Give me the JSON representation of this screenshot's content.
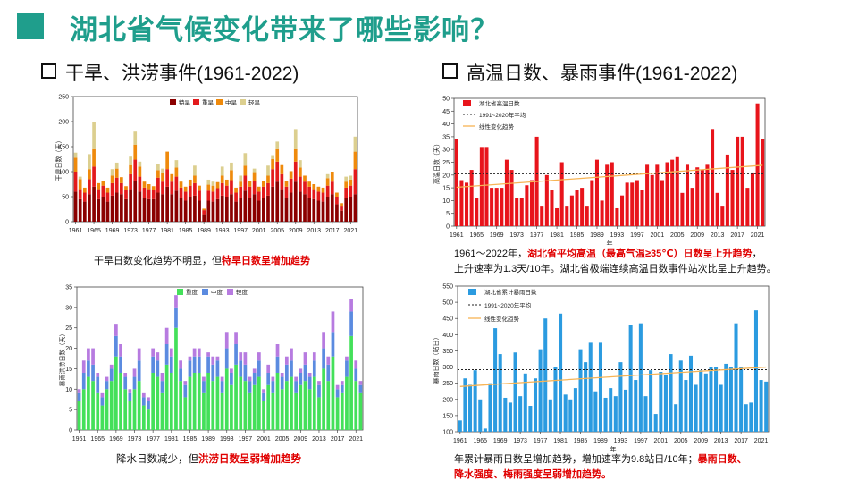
{
  "page": {
    "title": "湖北省气候变化带来了哪些影响？"
  },
  "sections": {
    "left": "干旱、洪涝事件(1961-2022)",
    "right": "高温日数、暴雨事件(1961-2022)"
  },
  "captions": {
    "c1_a": "干旱日数变化趋势不明显，但",
    "c1_b": "特旱日数呈增加趋势",
    "c2_a": "降水日数减少，但",
    "c2_b": "洪涝日数呈弱增加趋势",
    "c3_a": "1961～2022年，",
    "c3_b": "湖北省平均高温（最高气温≥35℃）日数呈上升趋势",
    "c3_c": "，",
    "c3_d": "上升速率为1.3天/10年。湖北省极端连续高温日数事件站次比呈上升趋势。",
    "c4_a": "年累计暴雨日数呈增加趋势，增加速率为9.8站日/10年；",
    "c4_b": "暴雨日数、",
    "c4_c": "降水强度、梅雨强度呈弱增加趋势。"
  },
  "colors": {
    "teal": "#1f9e8c",
    "drought": [
      "#8b0000",
      "#e31a1c",
      "#ef8a0c",
      "#dccf8f"
    ],
    "flood": [
      "#b77be0",
      "#5b8be0",
      "#44e05a"
    ],
    "heat": "#e8141b",
    "rain": "#2b9be0",
    "trend": "#f7b455",
    "mean": "#222222"
  },
  "chart_data": [
    {
      "id": "drought",
      "type": "bar",
      "stacked": true,
      "ylabel": "干旱日数（天）",
      "ylim": [
        0,
        250
      ],
      "yticks": [
        0,
        50,
        100,
        150,
        200,
        250
      ],
      "xticks": [
        "1961",
        "1965",
        "1969",
        "1973",
        "1977",
        "1981",
        "1985",
        "1989",
        "1993",
        "1997",
        "2001",
        "2005",
        "2009",
        "2013",
        "2017",
        "2021"
      ],
      "x_start": 1961,
      "legend": [
        "特旱",
        "重旱",
        "中旱",
        "轻旱"
      ],
      "series": [
        {
          "name": "轻旱",
          "values": [
            60,
            45,
            40,
            55,
            70,
            45,
            50,
            40,
            52,
            58,
            55,
            45,
            65,
            82,
            60,
            48,
            45,
            45,
            58,
            55,
            70,
            55,
            62,
            48,
            42,
            50,
            52,
            42,
            15,
            42,
            40,
            45,
            52,
            50,
            55,
            40,
            48,
            62,
            48,
            55,
            42,
            48,
            52,
            70,
            80,
            65,
            48,
            58,
            80,
            60,
            55,
            48,
            45,
            42,
            40,
            50,
            55,
            35,
            22,
            48,
            50,
            55
          ]
        },
        {
          "name": "中旱",
          "values": [
            40,
            20,
            18,
            30,
            40,
            20,
            22,
            18,
            25,
            30,
            22,
            18,
            30,
            42,
            30,
            20,
            20,
            18,
            30,
            25,
            35,
            25,
            28,
            20,
            18,
            22,
            25,
            20,
            8,
            20,
            20,
            22,
            25,
            22,
            28,
            18,
            22,
            30,
            22,
            26,
            18,
            22,
            25,
            35,
            40,
            30,
            22,
            28,
            40,
            30,
            25,
            22,
            20,
            18,
            18,
            22,
            25,
            15,
            10,
            20,
            22,
            50
          ]
        },
        {
          "name": "重旱",
          "values": [
            28,
            20,
            10,
            20,
            35,
            12,
            10,
            10,
            15,
            18,
            12,
            8,
            18,
            30,
            20,
            12,
            10,
            8,
            15,
            18,
            35,
            15,
            18,
            12,
            10,
            12,
            15,
            10,
            3,
            12,
            12,
            12,
            15,
            12,
            20,
            10,
            10,
            20,
            12,
            18,
            10,
            12,
            15,
            20,
            25,
            18,
            12,
            15,
            25,
            18,
            12,
            10,
            10,
            10,
            10,
            15,
            20,
            8,
            5,
            12,
            12,
            35
          ]
        },
        {
          "name": "特旱",
          "values": [
            10,
            5,
            0,
            30,
            55,
            0,
            0,
            0,
            13,
            12,
            0,
            0,
            17,
            26,
            10,
            0,
            0,
            0,
            12,
            8,
            0,
            0,
            15,
            0,
            0,
            0,
            20,
            0,
            0,
            10,
            8,
            0,
            18,
            0,
            15,
            0,
            12,
            25,
            0,
            7,
            0,
            0,
            20,
            8,
            15,
            0,
            0,
            0,
            40,
            15,
            0,
            0,
            0,
            0,
            0,
            8,
            0,
            0,
            0,
            10,
            8,
            30
          ]
        }
      ]
    },
    {
      "id": "flood",
      "type": "bar",
      "stacked": true,
      "ylabel": "暴雨洪涝日数（天）",
      "ylim": [
        0,
        35
      ],
      "yticks": [
        0,
        5,
        10,
        15,
        20,
        25,
        30,
        35
      ],
      "xticks": [
        "1961",
        "1965",
        "1969",
        "1973",
        "1977",
        "1981",
        "1985",
        "1989",
        "1993",
        "1997",
        "2001",
        "2005",
        "2009",
        "2013",
        "2017",
        "2021"
      ],
      "x_start": 1961,
      "legend": [
        "重度",
        "中度",
        "轻度"
      ],
      "series": [
        {
          "name": "轻度",
          "values": [
            7,
            10,
            13,
            12,
            9,
            6,
            10,
            12,
            18,
            14,
            10,
            7,
            10,
            12,
            6,
            5,
            14,
            13,
            9,
            16,
            14,
            25,
            12,
            8,
            13,
            14,
            14,
            9,
            14,
            12,
            13,
            9,
            15,
            11,
            16,
            13,
            12,
            9,
            11,
            13,
            7,
            11,
            9,
            14,
            10,
            12,
            13,
            9,
            11,
            12,
            10,
            13,
            8,
            15,
            12,
            18,
            8,
            9,
            13,
            23,
            12,
            9
          ]
        },
        {
          "name": "中度",
          "values": [
            2,
            4,
            4,
            4,
            4,
            2,
            2,
            3,
            5,
            4,
            3,
            2,
            3,
            5,
            2,
            2,
            4,
            4,
            3,
            5,
            4,
            5,
            3,
            3,
            4,
            4,
            4,
            3,
            4,
            4,
            4,
            3,
            5,
            3,
            5,
            4,
            4,
            3,
            3,
            4,
            2,
            3,
            3,
            4,
            3,
            4,
            4,
            3,
            3,
            4,
            3,
            4,
            3,
            5,
            4,
            6,
            2,
            2,
            4,
            6,
            3,
            2
          ]
        },
        {
          "name": "重度",
          "values": [
            1,
            3,
            3,
            4,
            1,
            1,
            1,
            1,
            3,
            3,
            1,
            1,
            2,
            3,
            1,
            1,
            2,
            2,
            2,
            4,
            2,
            3,
            2,
            1,
            1,
            2,
            2,
            1,
            1,
            2,
            1,
            1,
            4,
            1,
            3,
            2,
            3,
            1,
            1,
            2,
            1,
            2,
            1,
            3,
            1,
            2,
            3,
            1,
            1,
            3,
            1,
            2,
            1,
            4,
            2,
            5,
            1,
            1,
            1,
            3,
            2,
            1
          ]
        }
      ]
    },
    {
      "id": "heat",
      "type": "bar",
      "ylabel": "高温日数（天）",
      "ylim": [
        0,
        50
      ],
      "yticks": [
        0,
        5,
        10,
        15,
        20,
        25,
        30,
        35,
        40,
        45,
        50
      ],
      "xlabel": "年",
      "xticks": [
        "1961",
        "1965",
        "1969",
        "1973",
        "1977",
        "1981",
        "1985",
        "1989",
        "1993",
        "1997",
        "2001",
        "2005",
        "2009",
        "2013",
        "2017",
        "2021"
      ],
      "x_start": 1961,
      "legend": [
        "湖北省高温日数",
        "1991~2020年平均",
        "线性变化趋势"
      ],
      "mean": 20.5,
      "trend": [
        15.2,
        23.8
      ],
      "values": [
        34,
        18,
        17,
        22,
        11,
        31,
        31,
        15,
        15,
        15,
        26,
        22,
        11,
        11,
        16,
        18,
        35,
        8,
        20,
        14,
        7,
        25,
        8,
        12,
        14,
        15,
        8,
        18,
        26,
        10,
        24,
        25,
        7,
        12,
        17,
        17,
        18,
        14,
        24,
        20,
        24,
        18,
        25,
        26,
        27,
        13,
        24,
        15,
        23,
        22,
        24,
        38,
        13,
        8,
        28,
        22,
        35,
        35,
        15,
        21,
        48,
        34
      ]
    },
    {
      "id": "rain",
      "type": "bar",
      "ylabel": "暴雨日数（站日）",
      "ylim": [
        100,
        550
      ],
      "yticks": [
        100,
        150,
        200,
        250,
        300,
        350,
        400,
        450,
        500,
        550
      ],
      "xlabel": "年",
      "xticks": [
        "1961",
        "1965",
        "1969",
        "1973",
        "1977",
        "1981",
        "1985",
        "1989",
        "1993",
        "1997",
        "2001",
        "2005",
        "2009",
        "2013",
        "2017",
        "2021"
      ],
      "x_start": 1961,
      "legend": [
        "湖北省累计暴雨日数",
        "1991~2020年平均",
        "线性变化趋势"
      ],
      "mean": 292,
      "trend": [
        240,
        300
      ],
      "values": [
        135,
        265,
        245,
        290,
        200,
        110,
        250,
        420,
        340,
        205,
        190,
        345,
        210,
        280,
        180,
        265,
        355,
        450,
        200,
        300,
        465,
        215,
        200,
        235,
        355,
        315,
        375,
        225,
        375,
        205,
        235,
        210,
        315,
        230,
        430,
        260,
        435,
        210,
        290,
        155,
        285,
        275,
        340,
        185,
        320,
        260,
        335,
        245,
        290,
        280,
        300,
        300,
        245,
        310,
        300,
        435,
        300,
        185,
        190,
        475,
        260,
        255
      ]
    }
  ]
}
